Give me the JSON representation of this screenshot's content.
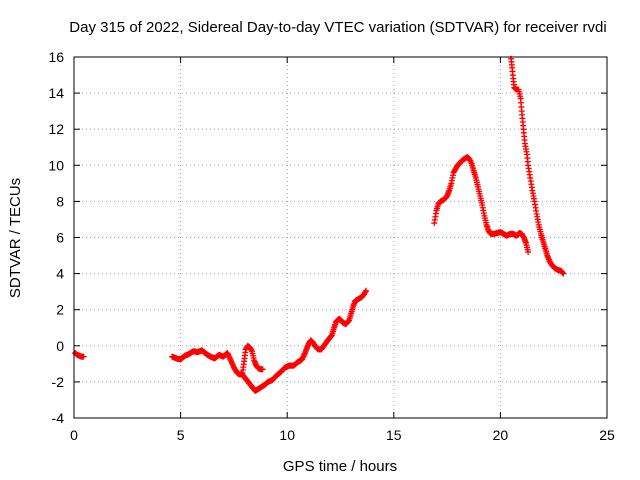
{
  "chart_data": {
    "type": "scatter",
    "title": "Day 315 of 2022, Sidereal Day-to-day VTEC variation (SDTVAR) for receiver rvdi",
    "xlabel": "GPS time / hours",
    "ylabel": "SDTVAR / TECUs",
    "xlim": [
      0,
      25
    ],
    "ylim": [
      -4,
      16
    ],
    "xticks": [
      0,
      5,
      10,
      15,
      20,
      25
    ],
    "yticks": [
      -4,
      -2,
      0,
      2,
      4,
      6,
      8,
      10,
      12,
      14,
      16
    ],
    "grid": true,
    "marker": "plus",
    "color": "#ff0000",
    "segments": [
      [
        [
          0.05,
          -0.4
        ],
        [
          0.15,
          -0.5
        ],
        [
          0.25,
          -0.55
        ],
        [
          0.35,
          -0.6
        ],
        [
          0.45,
          -0.6
        ]
      ],
      [
        [
          4.6,
          -0.6
        ],
        [
          4.8,
          -0.7
        ],
        [
          5.0,
          -0.75
        ],
        [
          5.2,
          -0.55
        ],
        [
          5.4,
          -0.45
        ],
        [
          5.6,
          -0.3
        ],
        [
          5.8,
          -0.35
        ],
        [
          6.0,
          -0.25
        ],
        [
          6.2,
          -0.45
        ],
        [
          6.4,
          -0.6
        ],
        [
          6.6,
          -0.7
        ],
        [
          6.8,
          -0.5
        ],
        [
          7.0,
          -0.6
        ],
        [
          7.2,
          -0.4
        ],
        [
          7.35,
          -0.8
        ],
        [
          7.5,
          -1.2
        ],
        [
          7.65,
          -1.5
        ],
        [
          7.8,
          -1.6
        ],
        [
          7.9,
          -1.5
        ],
        [
          8.0,
          -0.7
        ],
        [
          8.05,
          -0.2
        ],
        [
          8.15,
          0.0
        ],
        [
          8.25,
          -0.1
        ],
        [
          8.35,
          -0.3
        ],
        [
          8.45,
          -0.8
        ],
        [
          8.55,
          -1.1
        ],
        [
          8.65,
          -1.25
        ],
        [
          8.75,
          -1.3
        ],
        [
          8.85,
          -1.3
        ]
      ],
      [
        [
          7.9,
          -1.6
        ],
        [
          8.1,
          -1.9
        ],
        [
          8.3,
          -2.2
        ],
        [
          8.5,
          -2.5
        ],
        [
          8.7,
          -2.35
        ],
        [
          8.9,
          -2.2
        ],
        [
          9.1,
          -2.0
        ],
        [
          9.3,
          -1.9
        ],
        [
          9.5,
          -1.65
        ],
        [
          9.7,
          -1.45
        ],
        [
          9.9,
          -1.2
        ],
        [
          10.1,
          -1.1
        ],
        [
          10.3,
          -1.1
        ],
        [
          10.5,
          -0.9
        ],
        [
          10.7,
          -0.75
        ],
        [
          10.8,
          -0.5
        ],
        [
          10.9,
          -0.2
        ],
        [
          11.0,
          0.1
        ],
        [
          11.1,
          0.3
        ],
        [
          11.2,
          0.2
        ],
        [
          11.3,
          0.0
        ],
        [
          11.45,
          -0.2
        ],
        [
          11.6,
          -0.2
        ],
        [
          11.75,
          0.05
        ],
        [
          11.9,
          0.3
        ],
        [
          12.1,
          0.6
        ],
        [
          12.2,
          1.0
        ],
        [
          12.3,
          1.35
        ],
        [
          12.45,
          1.5
        ],
        [
          12.6,
          1.3
        ],
        [
          12.75,
          1.2
        ],
        [
          12.9,
          1.4
        ],
        [
          13.0,
          1.8
        ],
        [
          13.1,
          2.2
        ],
        [
          13.2,
          2.5
        ],
        [
          13.35,
          2.6
        ],
        [
          13.5,
          2.7
        ],
        [
          13.6,
          2.85
        ],
        [
          13.7,
          3.05
        ]
      ],
      [
        [
          16.9,
          6.8
        ],
        [
          17.0,
          7.5
        ],
        [
          17.1,
          7.9
        ],
        [
          17.2,
          8.0
        ],
        [
          17.35,
          8.1
        ],
        [
          17.5,
          8.3
        ],
        [
          17.6,
          8.6
        ],
        [
          17.7,
          9.0
        ],
        [
          17.8,
          9.6
        ],
        [
          17.9,
          9.8
        ],
        [
          18.0,
          10.0
        ],
        [
          18.15,
          10.2
        ],
        [
          18.3,
          10.35
        ],
        [
          18.45,
          10.45
        ],
        [
          18.55,
          10.35
        ],
        [
          18.65,
          10.1
        ],
        [
          18.75,
          9.7
        ],
        [
          18.85,
          9.3
        ],
        [
          18.95,
          8.8
        ],
        [
          19.05,
          8.3
        ],
        [
          19.15,
          7.8
        ],
        [
          19.25,
          7.2
        ],
        [
          19.35,
          6.7
        ],
        [
          19.45,
          6.35
        ],
        [
          19.55,
          6.2
        ],
        [
          19.7,
          6.2
        ],
        [
          19.85,
          6.25
        ],
        [
          20.0,
          6.3
        ],
        [
          20.15,
          6.2
        ],
        [
          20.3,
          6.1
        ],
        [
          20.45,
          6.2
        ],
        [
          20.6,
          6.2
        ],
        [
          20.75,
          6.1
        ],
        [
          20.9,
          6.25
        ],
        [
          21.0,
          6.2
        ],
        [
          21.1,
          6.0
        ],
        [
          21.2,
          5.7
        ],
        [
          21.3,
          5.2
        ]
      ],
      [
        [
          20.5,
          15.9
        ],
        [
          20.55,
          15.4
        ],
        [
          20.6,
          14.8
        ],
        [
          20.65,
          14.3
        ],
        [
          20.75,
          14.2
        ],
        [
          20.85,
          14.2
        ],
        [
          20.95,
          13.7
        ],
        [
          21.0,
          13.0
        ],
        [
          21.05,
          12.4
        ],
        [
          21.1,
          11.8
        ],
        [
          21.15,
          11.2
        ],
        [
          21.25,
          10.6
        ],
        [
          21.3,
          10.0
        ],
        [
          21.4,
          9.3
        ],
        [
          21.5,
          8.6
        ],
        [
          21.6,
          8.0
        ],
        [
          21.7,
          7.3
        ],
        [
          21.8,
          6.7
        ],
        [
          21.9,
          6.2
        ],
        [
          22.0,
          5.8
        ],
        [
          22.1,
          5.4
        ],
        [
          22.2,
          5.0
        ],
        [
          22.3,
          4.7
        ],
        [
          22.4,
          4.5
        ],
        [
          22.55,
          4.3
        ],
        [
          22.7,
          4.2
        ],
        [
          22.85,
          4.15
        ],
        [
          22.95,
          4.0
        ]
      ]
    ]
  }
}
